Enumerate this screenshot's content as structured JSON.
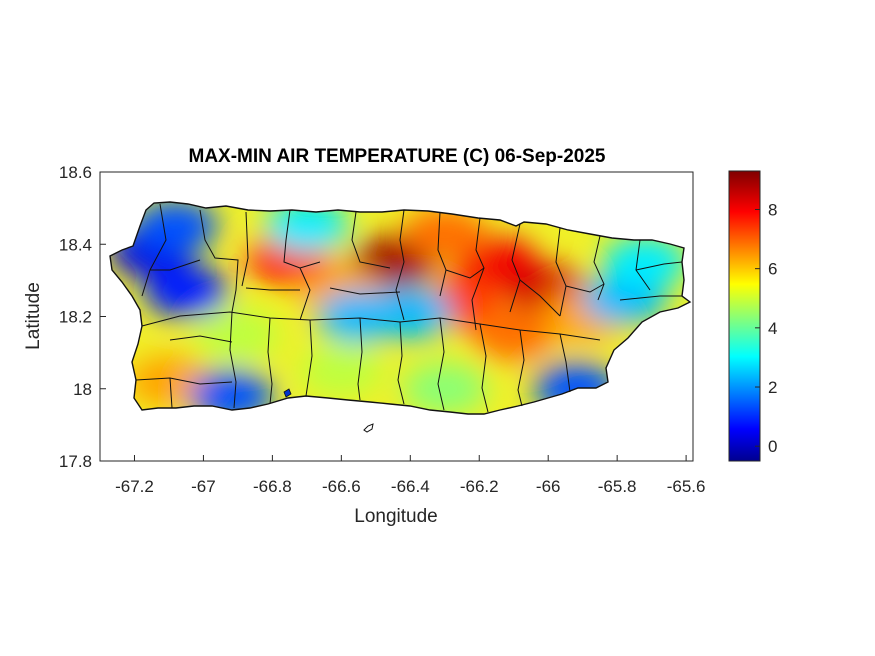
{
  "map": {
    "title": "MAX-MIN AIR TEMPERATURE (C) 06-Sep-2025",
    "xlabel": "Longitude",
    "ylabel": "Latitude",
    "xlim": [
      -67.3,
      -65.58
    ],
    "ylim": [
      17.8,
      18.6
    ],
    "x_ticks": [
      -67.2,
      -67,
      -66.8,
      -66.6,
      -66.4,
      -66.2,
      -66,
      -65.8,
      -65.6
    ],
    "x_tick_labels": [
      "-67.2",
      "-67",
      "-66.8",
      "-66.6",
      "-66.4",
      "-66.2",
      "-66",
      "-65.8",
      "-65.6"
    ],
    "y_ticks": [
      17.8,
      18,
      18.2,
      18.4,
      18.6
    ],
    "y_tick_labels": [
      "17.8",
      "18",
      "18.2",
      "18.4",
      "18.6"
    ],
    "colormap": "jet",
    "colorbar": {
      "range": [
        -0.5,
        9.3
      ],
      "ticks": [
        0,
        2,
        4,
        6,
        8
      ],
      "tick_labels": [
        "0",
        "2",
        "4",
        "6",
        "8"
      ]
    },
    "field_hotspots": [
      {
        "lon": -66.45,
        "lat": 18.35,
        "value": 9.0
      },
      {
        "lon": -66.75,
        "lat": 18.36,
        "value": 8.0
      },
      {
        "lon": -66.15,
        "lat": 18.35,
        "value": 8.2
      },
      {
        "lon": -66.0,
        "lat": 18.27,
        "value": 8.5
      },
      {
        "lon": -66.25,
        "lat": 18.24,
        "value": 7.5
      },
      {
        "lon": -66.3,
        "lat": 18.43,
        "value": 7.0
      },
      {
        "lon": -66.6,
        "lat": 18.27,
        "value": 6.5
      },
      {
        "lon": -66.1,
        "lat": 18.15,
        "value": 7.0
      },
      {
        "lon": -65.9,
        "lat": 18.2,
        "value": 6.5
      },
      {
        "lon": -67.1,
        "lat": 18.02,
        "value": 6.5
      },
      {
        "lon": -67.15,
        "lat": 18.38,
        "value": 0.5
      },
      {
        "lon": -67.05,
        "lat": 18.27,
        "value": 1.0
      },
      {
        "lon": -67.08,
        "lat": 18.45,
        "value": 1.5
      },
      {
        "lon": -66.55,
        "lat": 18.2,
        "value": 2.5
      },
      {
        "lon": -66.4,
        "lat": 18.21,
        "value": 2.5
      },
      {
        "lon": -65.92,
        "lat": 18.0,
        "value": 1.5
      },
      {
        "lon": -65.78,
        "lat": 18.25,
        "value": 2.5
      },
      {
        "lon": -65.72,
        "lat": 18.35,
        "value": 3.0
      },
      {
        "lon": -66.7,
        "lat": 18.45,
        "value": 3.0
      },
      {
        "lon": -66.92,
        "lat": 17.98,
        "value": 1.5
      },
      {
        "lon": -66.6,
        "lat": 18.05,
        "value": 5.0
      },
      {
        "lon": -66.3,
        "lat": 18.0,
        "value": 4.5
      },
      {
        "lon": -66.9,
        "lat": 18.15,
        "value": 5.0
      }
    ]
  }
}
